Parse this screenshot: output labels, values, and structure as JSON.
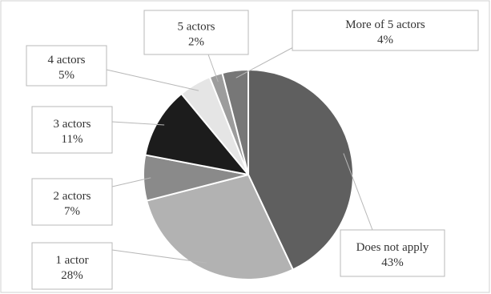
{
  "chart_data": {
    "type": "pie",
    "slices": [
      {
        "name": "Does not apply",
        "value": 43,
        "percent_label": "43%",
        "color": "#5f5f5f"
      },
      {
        "name": "1 actor",
        "value": 28,
        "percent_label": "28%",
        "color": "#b2b2b2"
      },
      {
        "name": "2 actors",
        "value": 7,
        "percent_label": "7%",
        "color": "#8a8a8a"
      },
      {
        "name": "3 actors",
        "value": 11,
        "percent_label": "11%",
        "color": "#1c1c1c"
      },
      {
        "name": "4 actors",
        "value": 5,
        "percent_label": "5%",
        "color": "#e5e5e5"
      },
      {
        "name": "5 actors",
        "value": 2,
        "percent_label": "2%",
        "color": "#9c9c9c"
      },
      {
        "name": "More of 5 actors",
        "value": 4,
        "percent_label": "4%",
        "color": "#777777"
      }
    ],
    "title": "",
    "legend": "none",
    "slice_border_color": "#ffffff",
    "label_box_border_color": "#b8b8b8",
    "frame_border_color": "#d0d0d0"
  }
}
